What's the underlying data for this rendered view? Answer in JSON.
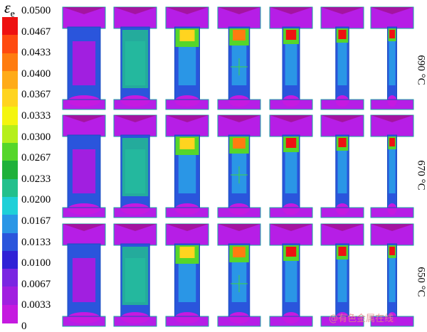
{
  "legend": {
    "symbol": "ε",
    "subscript": "e",
    "top_label": "0.0500",
    "ticks": [
      "0.0467",
      "0.0433",
      "0.0400",
      "0.0367",
      "0.0333",
      "0.0300",
      "0.0267",
      "0.0233",
      "0.0200",
      "0.0167",
      "0.0133",
      "0.0100",
      "0.0067",
      "0.0033",
      "0"
    ],
    "colors": [
      "#ee1111",
      "#ff4a10",
      "#ff7c10",
      "#ffab18",
      "#ffd41f",
      "#f4f50f",
      "#b6ef1b",
      "#55d62a",
      "#1fb13a",
      "#23c08c",
      "#1fd0d8",
      "#2a96e6",
      "#2a55dc",
      "#2f21d6",
      "#7a26e2",
      "#a11fe0",
      "#c51ae0"
    ]
  },
  "rows": [
    {
      "temperature": "690 °C"
    },
    {
      "temperature": "670 °C"
    },
    {
      "temperature": "650 °C"
    }
  ],
  "watermark": "@有色金属在线"
}
